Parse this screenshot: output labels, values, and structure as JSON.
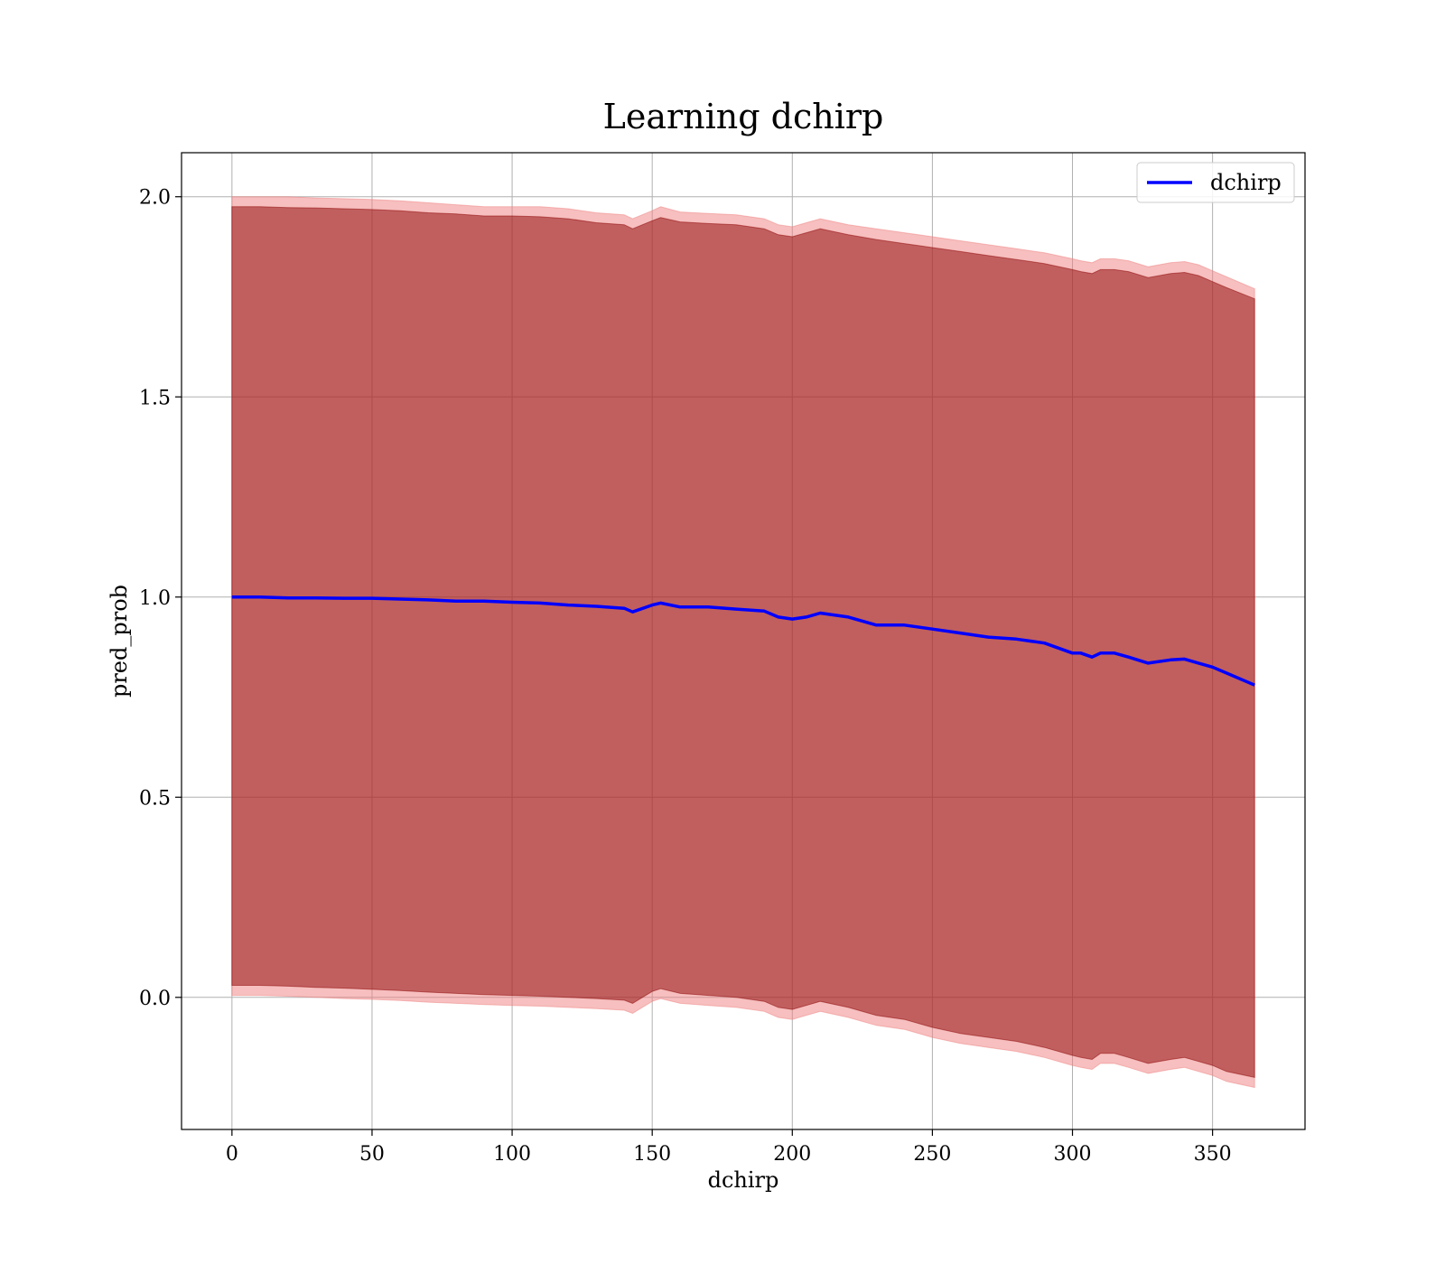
{
  "chart_data": {
    "type": "area",
    "title": "Learning dchirp",
    "xlabel": "dchirp",
    "ylabel": "pred_prob",
    "xlim": [
      -18,
      383
    ],
    "ylim": [
      -0.33,
      2.11
    ],
    "xticks": [
      "0",
      "50",
      "100",
      "150",
      "200",
      "250",
      "300",
      "350"
    ],
    "yticks": [
      "0.0",
      "0.5",
      "1.0",
      "1.5",
      "2.0"
    ],
    "grid": true,
    "legend_position": "top-right",
    "series": [
      {
        "name": "dchirp",
        "color": "#0000ff",
        "x": [
          0,
          10,
          20,
          30,
          40,
          50,
          60,
          70,
          80,
          90,
          100,
          110,
          120,
          130,
          140,
          143,
          150,
          153,
          160,
          170,
          180,
          190,
          195,
          200,
          205,
          210,
          220,
          230,
          240,
          250,
          260,
          270,
          280,
          290,
          300,
          303,
          307,
          310,
          315,
          320,
          327,
          335,
          340,
          345,
          350,
          355,
          365
        ],
        "y": [
          1.0,
          1.0,
          0.998,
          0.998,
          0.997,
          0.997,
          0.995,
          0.993,
          0.99,
          0.99,
          0.987,
          0.985,
          0.98,
          0.977,
          0.972,
          0.963,
          0.98,
          0.985,
          0.975,
          0.975,
          0.97,
          0.965,
          0.95,
          0.945,
          0.95,
          0.96,
          0.95,
          0.93,
          0.93,
          0.92,
          0.91,
          0.9,
          0.895,
          0.885,
          0.86,
          0.86,
          0.85,
          0.86,
          0.86,
          0.85,
          0.835,
          0.843,
          0.845,
          0.835,
          0.825,
          0.81,
          0.78
        ]
      }
    ],
    "bands": [
      {
        "color": "#f08080",
        "upper": [
          2.0,
          2.0,
          2.0,
          1.997,
          1.995,
          1.993,
          1.99,
          1.985,
          1.98,
          1.975,
          1.975,
          1.975,
          1.97,
          1.96,
          1.955,
          1.945,
          1.965,
          1.975,
          1.962,
          1.958,
          1.955,
          1.945,
          1.93,
          1.925,
          1.935,
          1.945,
          1.93,
          1.92,
          1.91,
          1.9,
          1.89,
          1.88,
          1.87,
          1.86,
          1.845,
          1.84,
          1.835,
          1.845,
          1.845,
          1.84,
          1.825,
          1.835,
          1.838,
          1.83,
          1.815,
          1.8,
          1.77
        ],
        "lower": [
          0.005,
          0.005,
          0.003,
          0.0,
          -0.003,
          -0.005,
          -0.008,
          -0.012,
          -0.015,
          -0.018,
          -0.02,
          -0.022,
          -0.025,
          -0.028,
          -0.032,
          -0.04,
          -0.01,
          -0.003,
          -0.015,
          -0.02,
          -0.025,
          -0.035,
          -0.05,
          -0.055,
          -0.045,
          -0.035,
          -0.05,
          -0.07,
          -0.08,
          -0.1,
          -0.115,
          -0.125,
          -0.135,
          -0.15,
          -0.17,
          -0.175,
          -0.18,
          -0.165,
          -0.165,
          -0.175,
          -0.19,
          -0.18,
          -0.175,
          -0.185,
          -0.195,
          -0.21,
          -0.225
        ]
      },
      {
        "color": "#8b0000",
        "upper": [
          1.975,
          1.975,
          1.973,
          1.972,
          1.97,
          1.968,
          1.965,
          1.96,
          1.957,
          1.952,
          1.952,
          1.95,
          1.945,
          1.935,
          1.93,
          1.92,
          1.94,
          1.948,
          1.937,
          1.933,
          1.93,
          1.92,
          1.905,
          1.9,
          1.91,
          1.92,
          1.905,
          1.893,
          1.883,
          1.873,
          1.863,
          1.853,
          1.843,
          1.833,
          1.818,
          1.813,
          1.808,
          1.818,
          1.818,
          1.813,
          1.798,
          1.808,
          1.811,
          1.803,
          1.788,
          1.773,
          1.745
        ],
        "lower": [
          0.03,
          0.03,
          0.028,
          0.025,
          0.023,
          0.02,
          0.017,
          0.013,
          0.01,
          0.007,
          0.005,
          0.003,
          0.0,
          -0.003,
          -0.007,
          -0.015,
          0.015,
          0.022,
          0.01,
          0.005,
          0.0,
          -0.01,
          -0.025,
          -0.03,
          -0.02,
          -0.01,
          -0.025,
          -0.045,
          -0.055,
          -0.075,
          -0.09,
          -0.1,
          -0.11,
          -0.125,
          -0.145,
          -0.15,
          -0.155,
          -0.14,
          -0.14,
          -0.15,
          -0.165,
          -0.155,
          -0.15,
          -0.16,
          -0.17,
          -0.185,
          -0.2
        ]
      }
    ]
  }
}
